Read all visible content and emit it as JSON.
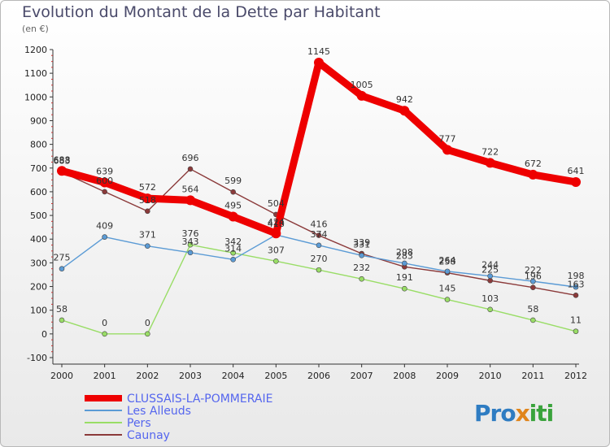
{
  "title": "Evolution du Montant de la Dette par Habitant",
  "subtitle": "(en €)",
  "logo_text": "Proxiti",
  "chart_data": {
    "type": "line",
    "title": "Evolution du Montant de la Dette par Habitant",
    "ylabel": "(en €)",
    "xlabel": "",
    "x": [
      "2000",
      "2001",
      "2002",
      "2003",
      "2004",
      "2005",
      "2006",
      "2007",
      "2008",
      "2009",
      "2010",
      "2011",
      "2012"
    ],
    "ylim": [
      -100,
      1200
    ],
    "yticks": [
      -100,
      0,
      100,
      200,
      300,
      400,
      500,
      600,
      700,
      800,
      900,
      1000,
      1100,
      1200
    ],
    "grid": false,
    "legend_position": "bottom-left",
    "series": [
      {
        "name": "CLUSSAIS-LA-POMMERAIE",
        "color": "#ee0000",
        "values": [
          688,
          639,
          572,
          564,
          495,
          424,
          1145,
          1005,
          942,
          777,
          722,
          672,
          641
        ]
      },
      {
        "name": "Les Alleuds",
        "color": "#5b9bd5",
        "values": [
          275,
          409,
          371,
          343,
          314,
          418,
          374,
          331,
          298,
          264,
          244,
          222,
          198
        ]
      },
      {
        "name": "Pers",
        "color": "#99dd66",
        "values": [
          58,
          0,
          0,
          376,
          342,
          307,
          270,
          232,
          191,
          145,
          103,
          58,
          11
        ]
      },
      {
        "name": "Caunay",
        "color": "#8b3a3a",
        "values": [
          683,
          600,
          518,
          696,
          599,
          504,
          416,
          339,
          283,
          258,
          225,
          196,
          163
        ]
      }
    ]
  }
}
